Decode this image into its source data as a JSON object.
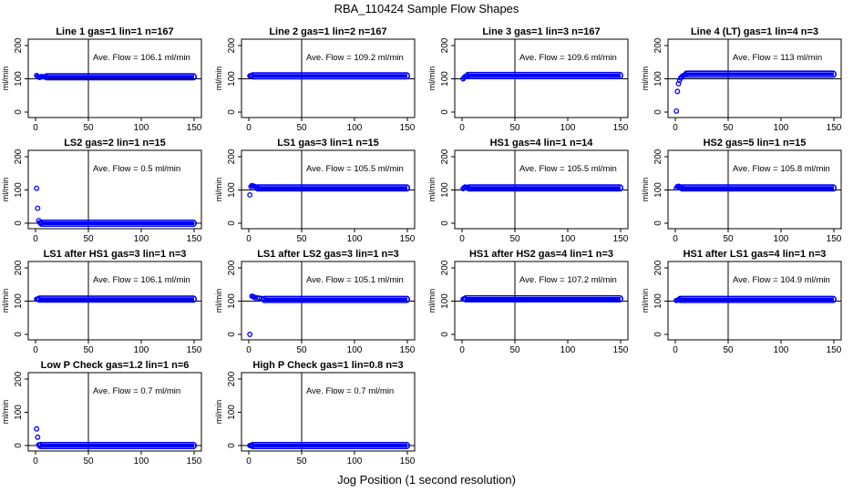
{
  "figure": {
    "title": "RBA_110424  Sample Flow Shapes",
    "xlabel": "Jog Position (1 second resolution)",
    "ylabel": "ml/min",
    "point_color": "#0000ff",
    "flow_prefix": "Ave. Flow = ",
    "flow_unit": "  ml/min"
  },
  "chart_data": [
    {
      "type": "scatter",
      "title": "Line 1 gas=1 lin=1 n=167",
      "avg_flow": "106.1",
      "xlim": [
        0,
        150
      ],
      "ylim": [
        0,
        200
      ],
      "xticks": [
        0,
        50,
        100,
        150
      ],
      "yticks": [
        0,
        100,
        200
      ],
      "vline_x": 50,
      "hline_y": 100,
      "points": [
        [
          1,
          110
        ],
        [
          2,
          107
        ],
        [
          3,
          105
        ],
        [
          4,
          104
        ],
        [
          5,
          106
        ],
        [
          6,
          107
        ],
        [
          7,
          106
        ],
        [
          8,
          106
        ],
        [
          9,
          106
        ],
        [
          10,
          106
        ]
      ],
      "steady_from": 10,
      "steady_to": 150,
      "steady_y": 106
    },
    {
      "type": "scatter",
      "title": "Line 2 gas=1 lin=2 n=167",
      "avg_flow": "109.2",
      "xlim": [
        0,
        150
      ],
      "ylim": [
        0,
        200
      ],
      "xticks": [
        0,
        50,
        100,
        150
      ],
      "yticks": [
        0,
        100,
        200
      ],
      "vline_x": 50,
      "hline_y": 100,
      "points": [
        [
          1,
          109
        ],
        [
          2,
          109
        ],
        [
          3,
          109
        ]
      ],
      "steady_from": 3,
      "steady_to": 150,
      "steady_y": 109
    },
    {
      "type": "scatter",
      "title": "Line 3 gas=1 lin=3 n=167",
      "avg_flow": "109.6",
      "xlim": [
        0,
        150
      ],
      "ylim": [
        0,
        200
      ],
      "xticks": [
        0,
        50,
        100,
        150
      ],
      "yticks": [
        0,
        100,
        200
      ],
      "vline_x": 50,
      "hline_y": 100,
      "points": [
        [
          1,
          100
        ],
        [
          2,
          104
        ],
        [
          3,
          107
        ],
        [
          4,
          108
        ],
        [
          5,
          109
        ]
      ],
      "steady_from": 5,
      "steady_to": 150,
      "steady_y": 110
    },
    {
      "type": "scatter",
      "title": "Line 4 (LT) gas=1 lin=4 n=3",
      "avg_flow": "113",
      "xlim": [
        0,
        150
      ],
      "ylim": [
        0,
        200
      ],
      "xticks": [
        0,
        50,
        100,
        150
      ],
      "yticks": [
        0,
        100,
        200
      ],
      "vline_x": 50,
      "hline_y": 100,
      "points": [
        [
          1,
          3
        ],
        [
          2,
          62
        ],
        [
          3,
          85
        ],
        [
          4,
          95
        ],
        [
          5,
          102
        ],
        [
          6,
          106
        ],
        [
          7,
          109
        ],
        [
          8,
          110
        ],
        [
          9,
          111
        ],
        [
          10,
          112
        ]
      ],
      "steady_from": 10,
      "steady_to": 150,
      "steady_y": 114
    },
    {
      "type": "scatter",
      "title": "LS2 gas=2 lin=1 n=15",
      "avg_flow": "0.5",
      "xlim": [
        0,
        150
      ],
      "ylim": [
        0,
        200
      ],
      "xticks": [
        0,
        50,
        100,
        150
      ],
      "yticks": [
        0,
        100,
        200
      ],
      "vline_x": 50,
      "hline_y": 0,
      "points": [
        [
          1,
          105
        ],
        [
          2,
          45
        ],
        [
          3,
          8
        ],
        [
          4,
          2
        ],
        [
          5,
          1
        ]
      ],
      "steady_from": 5,
      "steady_to": 150,
      "steady_y": 0
    },
    {
      "type": "scatter",
      "title": "LS1 gas=3 lin=1 n=15",
      "avg_flow": "105.5",
      "xlim": [
        0,
        150
      ],
      "ylim": [
        0,
        200
      ],
      "xticks": [
        0,
        50,
        100,
        150
      ],
      "yticks": [
        0,
        100,
        200
      ],
      "vline_x": 50,
      "hline_y": 100,
      "points": [
        [
          1,
          85
        ],
        [
          2,
          110
        ],
        [
          3,
          113
        ],
        [
          4,
          112
        ],
        [
          5,
          111
        ],
        [
          6,
          110
        ],
        [
          7,
          108
        ],
        [
          8,
          107
        ]
      ],
      "steady_from": 8,
      "steady_to": 150,
      "steady_y": 106
    },
    {
      "type": "scatter",
      "title": "HS1 gas=4 lin=1 n=14",
      "avg_flow": "105.5",
      "xlim": [
        0,
        150
      ],
      "ylim": [
        0,
        200
      ],
      "xticks": [
        0,
        50,
        100,
        150
      ],
      "yticks": [
        0,
        100,
        200
      ],
      "vline_x": 50,
      "hline_y": 100,
      "points": [
        [
          1,
          104
        ],
        [
          2,
          107
        ],
        [
          3,
          109
        ],
        [
          4,
          108
        ],
        [
          5,
          107
        ],
        [
          6,
          106
        ]
      ],
      "steady_from": 6,
      "steady_to": 150,
      "steady_y": 106
    },
    {
      "type": "scatter",
      "title": "HS2 gas=5 lin=1 n=15",
      "avg_flow": "105.8",
      "xlim": [
        0,
        150
      ],
      "ylim": [
        0,
        200
      ],
      "xticks": [
        0,
        50,
        100,
        150
      ],
      "yticks": [
        0,
        100,
        200
      ],
      "vline_x": 50,
      "hline_y": 100,
      "points": [
        [
          1,
          106
        ],
        [
          2,
          110
        ],
        [
          3,
          111
        ],
        [
          4,
          110
        ],
        [
          5,
          109
        ],
        [
          6,
          107
        ]
      ],
      "steady_from": 6,
      "steady_to": 150,
      "steady_y": 106
    },
    {
      "type": "scatter",
      "title": "LS1 after HS1 gas=3 lin=1 n=3",
      "avg_flow": "106.1",
      "xlim": [
        0,
        150
      ],
      "ylim": [
        0,
        200
      ],
      "xticks": [
        0,
        50,
        100,
        150
      ],
      "yticks": [
        0,
        100,
        200
      ],
      "vline_x": 50,
      "hline_y": 100,
      "points": [
        [
          1,
          106
        ],
        [
          2,
          106
        ],
        [
          3,
          106
        ]
      ],
      "steady_from": 3,
      "steady_to": 150,
      "steady_y": 106
    },
    {
      "type": "scatter",
      "title": "LS1 after LS2 gas=3 lin=1 n=3",
      "avg_flow": "105.1",
      "xlim": [
        0,
        150
      ],
      "ylim": [
        0,
        200
      ],
      "xticks": [
        0,
        50,
        100,
        150
      ],
      "yticks": [
        0,
        100,
        200
      ],
      "vline_x": 50,
      "hline_y": 100,
      "points": [
        [
          1,
          0
        ],
        [
          3,
          115
        ],
        [
          4,
          114
        ],
        [
          5,
          112
        ],
        [
          6,
          110
        ],
        [
          8,
          110
        ],
        [
          10,
          109
        ],
        [
          12,
          108
        ],
        [
          14,
          107
        ]
      ],
      "steady_from": 14,
      "steady_to": 150,
      "steady_y": 105
    },
    {
      "type": "scatter",
      "title": "HS1 after HS2 gas=4 lin=1 n=3",
      "avg_flow": "107.2",
      "xlim": [
        0,
        150
      ],
      "ylim": [
        0,
        200
      ],
      "xticks": [
        0,
        50,
        100,
        150
      ],
      "yticks": [
        0,
        100,
        200
      ],
      "vline_x": 50,
      "hline_y": 100,
      "points": [
        [
          1,
          106
        ],
        [
          2,
          107
        ],
        [
          3,
          107
        ]
      ],
      "steady_from": 3,
      "steady_to": 150,
      "steady_y": 107
    },
    {
      "type": "scatter",
      "title": "HS1 after LS1 gas=4 lin=1 n=3",
      "avg_flow": "104.9",
      "xlim": [
        0,
        150
      ],
      "ylim": [
        0,
        200
      ],
      "xticks": [
        0,
        50,
        100,
        150
      ],
      "yticks": [
        0,
        100,
        200
      ],
      "vline_x": 50,
      "hline_y": 100,
      "points": [
        [
          1,
          102
        ],
        [
          2,
          103
        ],
        [
          3,
          104
        ],
        [
          4,
          105
        ]
      ],
      "steady_from": 4,
      "steady_to": 150,
      "steady_y": 105
    },
    {
      "type": "scatter",
      "title": "Low P Check gas=1.2 lin=1 n=6",
      "avg_flow": "0.7",
      "xlim": [
        0,
        150
      ],
      "ylim": [
        0,
        200
      ],
      "xticks": [
        0,
        50,
        100,
        150
      ],
      "yticks": [
        0,
        100,
        200
      ],
      "vline_x": 50,
      "hline_y": 0,
      "points": [
        [
          1,
          50
        ],
        [
          2,
          25
        ],
        [
          3,
          2
        ],
        [
          4,
          1
        ]
      ],
      "steady_from": 4,
      "steady_to": 150,
      "steady_y": 0
    },
    {
      "type": "scatter",
      "title": "High P Check gas=1 lin=0.8 n=3",
      "avg_flow": "0.7",
      "xlim": [
        0,
        150
      ],
      "ylim": [
        0,
        200
      ],
      "xticks": [
        0,
        50,
        100,
        150
      ],
      "yticks": [
        0,
        100,
        200
      ],
      "vline_x": 50,
      "hline_y": 0,
      "points": [
        [
          1,
          0
        ],
        [
          2,
          0
        ],
        [
          3,
          0
        ]
      ],
      "steady_from": 3,
      "steady_to": 150,
      "steady_y": 0
    }
  ]
}
